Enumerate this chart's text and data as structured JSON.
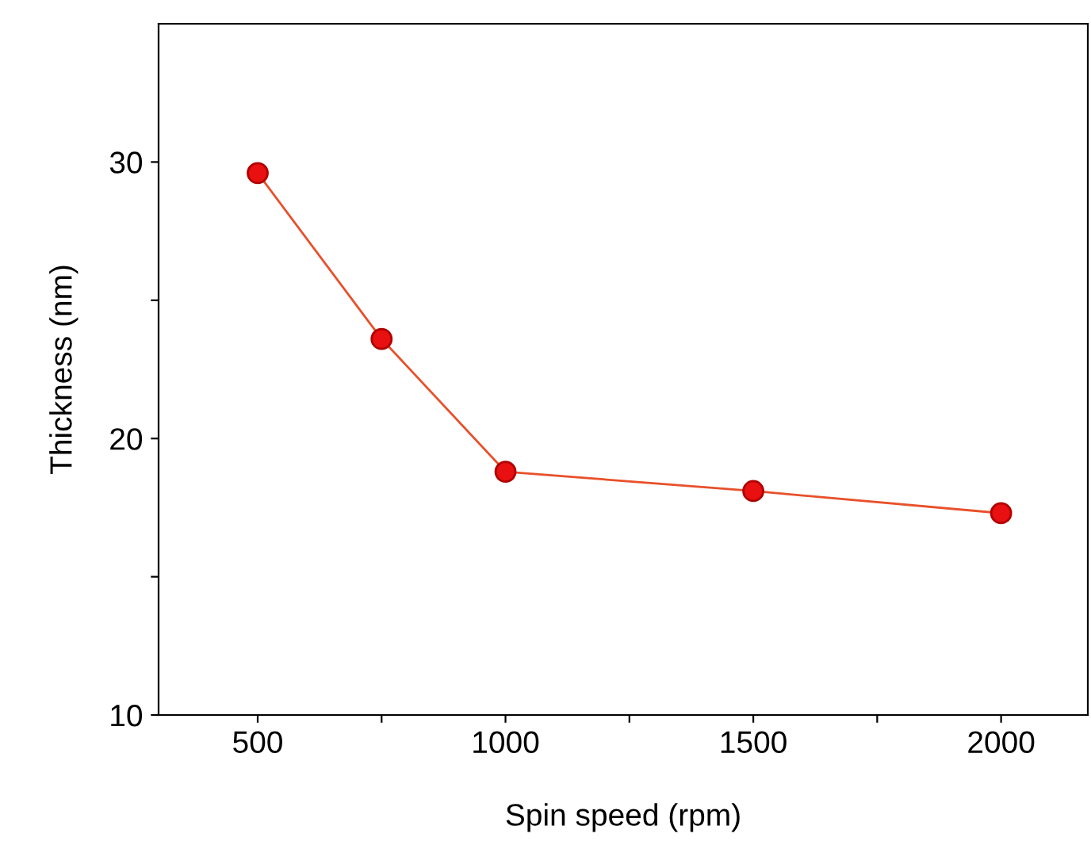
{
  "chart_data": {
    "type": "line",
    "xlabel": "Spin speed (rpm)",
    "ylabel": "Thickness (nm)",
    "x": [
      500,
      750,
      1000,
      1500,
      2000
    ],
    "series": [
      {
        "color": "#e8502a",
        "values": [
          29.6,
          23.6,
          18.8,
          18.1,
          17.3
        ]
      }
    ],
    "marker": "circle",
    "line_style": "solid",
    "grid": false,
    "legend": false,
    "xlim": [
      300,
      2175
    ],
    "xticks": [
      500,
      {
        "value": 750,
        "label": null
      },
      1000,
      {
        "value": 1250,
        "label": null
      },
      1500,
      {
        "value": 1750,
        "label": null
      },
      2000
    ],
    "ylim": [
      10,
      35
    ],
    "yticks": [
      10,
      {
        "value": 15,
        "label": null
      },
      20,
      {
        "value": 25,
        "label": null
      },
      30
    ]
  }
}
